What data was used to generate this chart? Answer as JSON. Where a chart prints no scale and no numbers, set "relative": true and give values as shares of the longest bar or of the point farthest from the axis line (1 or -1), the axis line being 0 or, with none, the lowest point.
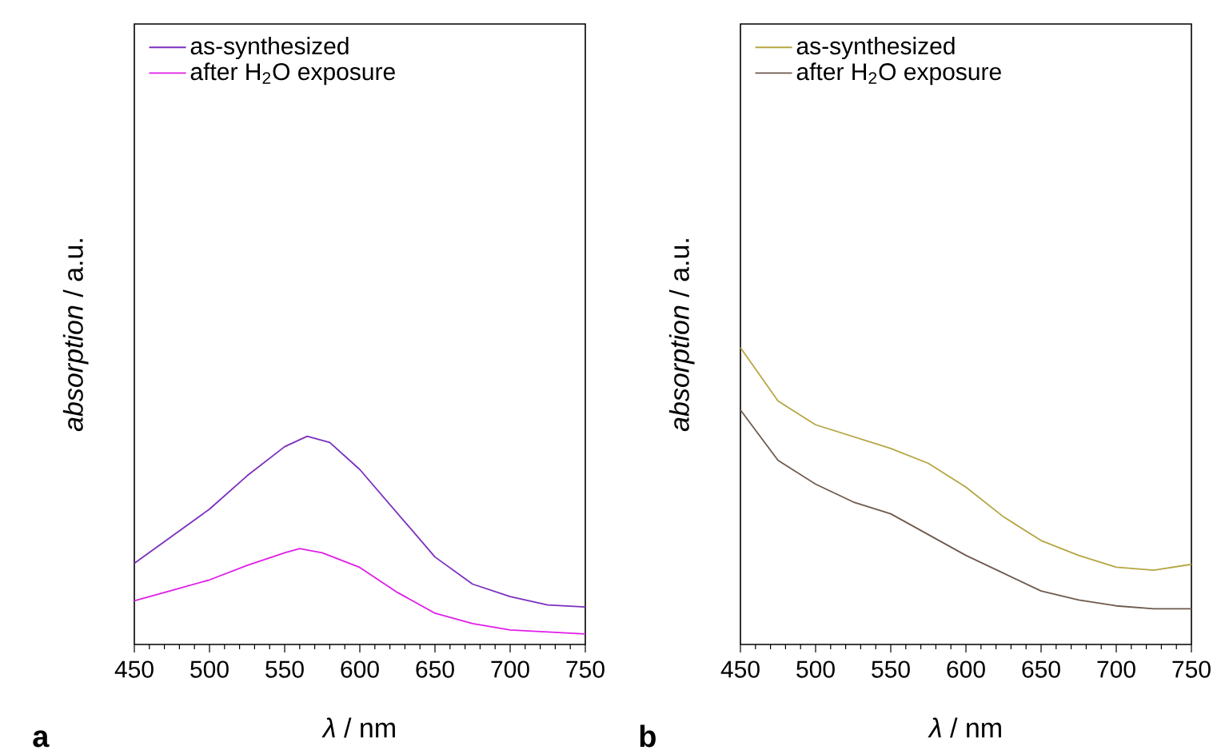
{
  "chart_data": [
    {
      "type": "line",
      "relative": true,
      "xlabel": "*λ* / nm",
      "ylabel": "*absorption* / a.u.",
      "xlim": [
        450,
        750
      ],
      "xticks": [
        450,
        500,
        550,
        600,
        650,
        700,
        750
      ],
      "legend": "top left",
      "tick_labels": "x",
      "annotations": [
        "a"
      ],
      "x": [
        450,
        475,
        500,
        525,
        550,
        565,
        580,
        600,
        625,
        650,
        675,
        700,
        725,
        750
      ],
      "series": [
        {
          "name": "as-synthesized",
          "color": "#7b2fbe",
          "values": [
            0.39,
            0.52,
            0.65,
            0.81,
            0.95,
            1,
            0.97,
            0.84,
            0.63,
            0.42,
            0.29,
            0.23,
            0.19,
            0.18
          ]
        },
        {
          "name": "after H$_{2}$O exposure",
          "color": "#e01ee8",
          "x": [
            450,
            475,
            500,
            525,
            550,
            560,
            575,
            600,
            625,
            650,
            675,
            700,
            725,
            750
          ],
          "values": [
            0.21,
            0.26,
            0.31,
            0.38,
            0.44,
            0.46,
            0.44,
            0.37,
            0.25,
            0.15,
            0.1,
            0.07,
            0.06,
            0.05
          ]
        }
      ]
    },
    {
      "type": "line",
      "relative": true,
      "xlabel": "*λ* / nm",
      "ylabel": "*absorption* / a.u.",
      "xlim": [
        450,
        750
      ],
      "xticks": [
        450,
        500,
        550,
        600,
        650,
        700,
        750
      ],
      "legend": "top left",
      "tick_labels": "x",
      "annotations": [
        "b"
      ],
      "x": [
        450,
        475,
        500,
        525,
        550,
        575,
        600,
        625,
        650,
        675,
        700,
        725,
        750
      ],
      "series": [
        {
          "name": "as-synthesized",
          "color": "#b5a642",
          "values": [
            1,
            0.82,
            0.74,
            0.7,
            0.66,
            0.61,
            0.53,
            0.43,
            0.35,
            0.3,
            0.26,
            0.25,
            0.27
          ]
        },
        {
          "name": "after H$_{2}$O exposure",
          "color": "#6e5a4e",
          "values": [
            0.79,
            0.62,
            0.54,
            0.48,
            0.44,
            0.37,
            0.3,
            0.24,
            0.18,
            0.15,
            0.13,
            0.12,
            0.12
          ]
        }
      ]
    }
  ]
}
